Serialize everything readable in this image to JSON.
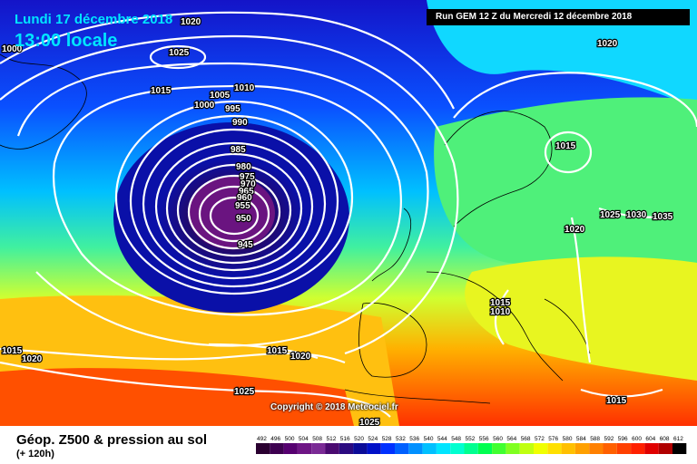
{
  "header": {
    "date": "Lundi 17 décembre 2018",
    "hour": "13:00 locale",
    "run": "Run GEM 12 Z du Mercredi 12 décembre 2018"
  },
  "copyright": "Copyright © 2018 Meteociel.fr",
  "footer": {
    "title": "Géop. Z500 & pression au sol",
    "subtitle": "(+ 120h)"
  },
  "scale": {
    "labels": [
      "492",
      "496",
      "500",
      "504",
      "508",
      "512",
      "516",
      "520",
      "524",
      "528",
      "532",
      "536",
      "540",
      "544",
      "548",
      "552",
      "556",
      "560",
      "564",
      "568",
      "572",
      "576",
      "580",
      "584",
      "588",
      "592",
      "596",
      "600",
      "604",
      "608",
      "612"
    ],
    "colors": [
      "#2a0030",
      "#3d0050",
      "#560070",
      "#6e1585",
      "#7a2a95",
      "#4a0a70",
      "#2b0a80",
      "#0b0b98",
      "#0010c8",
      "#0030ff",
      "#0060ff",
      "#0090ff",
      "#00c0ff",
      "#00e5ff",
      "#00ffd0",
      "#00ff90",
      "#00ff50",
      "#40ff30",
      "#80ff20",
      "#c0ff10",
      "#f0ff00",
      "#ffe000",
      "#ffc000",
      "#ffa000",
      "#ff8000",
      "#ff6000",
      "#ff4000",
      "#ff2000",
      "#e00000",
      "#b00000",
      "#000000"
    ]
  },
  "isobars": [
    {
      "text": "1020",
      "id": "label-1020-a"
    },
    {
      "text": "1000",
      "id": "label-1000-a"
    },
    {
      "text": "1025",
      "id": "label-1025-a"
    },
    {
      "text": "1015",
      "id": "label-1015-a"
    },
    {
      "text": "1010",
      "id": "label-1010-a"
    },
    {
      "text": "1005",
      "id": "label-1005-a"
    },
    {
      "text": "1000",
      "id": "label-1000-b"
    },
    {
      "text": "995",
      "id": "label-995"
    },
    {
      "text": "990",
      "id": "label-990"
    },
    {
      "text": "985",
      "id": "label-985"
    },
    {
      "text": "980",
      "id": "label-980"
    },
    {
      "text": "975",
      "id": "label-975"
    },
    {
      "text": "970",
      "id": "label-970"
    },
    {
      "text": "965",
      "id": "label-965"
    },
    {
      "text": "960",
      "id": "label-960"
    },
    {
      "text": "955",
      "id": "label-955"
    },
    {
      "text": "950",
      "id": "label-950"
    },
    {
      "text": "945",
      "id": "label-945"
    },
    {
      "text": "1020",
      "id": "label-1020-b"
    },
    {
      "text": "1015",
      "id": "label-1015-b"
    },
    {
      "text": "1025",
      "id": "label-1025-b"
    },
    {
      "text": "1030",
      "id": "label-1030"
    },
    {
      "text": "1035",
      "id": "label-1035"
    },
    {
      "text": "1020",
      "id": "label-1020-c"
    },
    {
      "text": "1015",
      "id": "label-1015-c"
    },
    {
      "text": "1010",
      "id": "label-1010-b"
    },
    {
      "text": "1015",
      "id": "label-1015-d"
    },
    {
      "text": "1020",
      "id": "label-1020-d"
    },
    {
      "text": "1015",
      "id": "label-1015-e"
    },
    {
      "text": "1020",
      "id": "label-1020-e"
    },
    {
      "text": "1025",
      "id": "label-1025-c"
    },
    {
      "text": "1025",
      "id": "label-1025-d"
    },
    {
      "text": "1015",
      "id": "label-1015-f"
    }
  ]
}
